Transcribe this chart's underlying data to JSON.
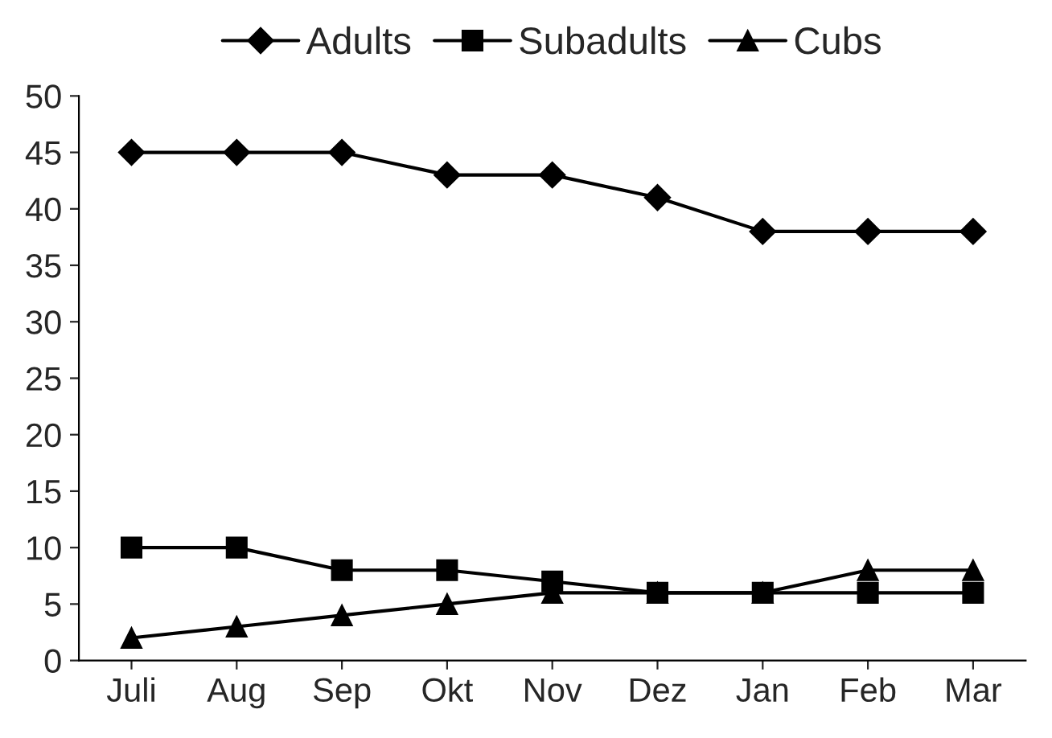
{
  "chart_data": {
    "type": "line",
    "categories": [
      "Juli",
      "Aug",
      "Sep",
      "Okt",
      "Nov",
      "Dez",
      "Jan",
      "Feb",
      "Mar"
    ],
    "series": [
      {
        "name": "Adults",
        "color": "#000000",
        "marker": "diamond",
        "values": [
          45,
          45,
          45,
          43,
          43,
          41,
          38,
          38,
          38
        ]
      },
      {
        "name": "Subadults",
        "color": "#000000",
        "marker": "square",
        "values": [
          10,
          10,
          8,
          8,
          7,
          6,
          6,
          6,
          6
        ]
      },
      {
        "name": "Cubs",
        "color": "#000000",
        "marker": "triangle",
        "values": [
          2,
          3,
          4,
          5,
          6,
          6,
          6,
          8,
          8
        ]
      }
    ],
    "ylim": [
      0,
      50
    ],
    "yticks": [
      0,
      5,
      10,
      15,
      20,
      25,
      30,
      35,
      40,
      45,
      50
    ],
    "grid": false,
    "legend": "top",
    "line_style": "solid"
  }
}
